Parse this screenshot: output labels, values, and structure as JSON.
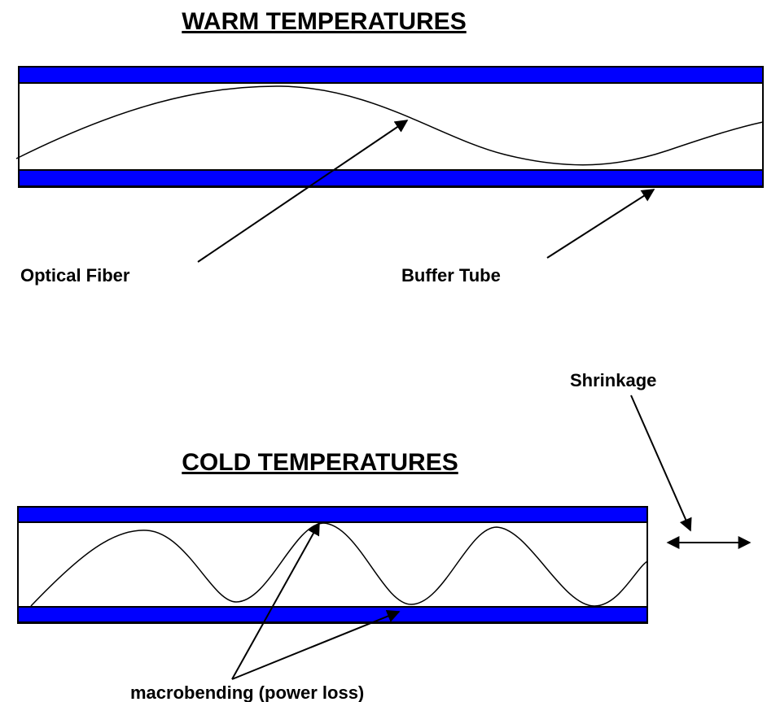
{
  "warm": {
    "title": "WARM TEMPERATURES",
    "labels": [
      "Optical Fiber",
      "Buffer Tube"
    ]
  },
  "cold": {
    "title": "COLD TEMPERATURES",
    "labels": [
      "Shrinkage",
      "macrobending (power loss)"
    ]
  }
}
